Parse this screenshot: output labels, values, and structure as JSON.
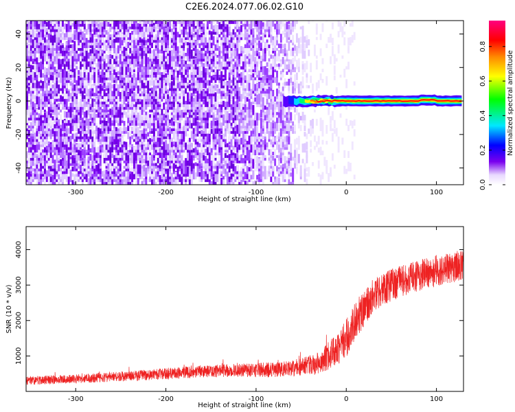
{
  "title": "C2E6.2024.077.06.02.G10",
  "colors": {
    "snr_line": "#ee2222",
    "spectrogram_noise": "#7a00ee",
    "spectrogram_signal_core": "#ee1111"
  },
  "chart_data": [
    {
      "type": "heatmap",
      "title": "C2E6.2024.077.06.02.G10",
      "xlabel": "Height of straight line (km)",
      "ylabel": "Frequency (Hz)",
      "xlim": [
        -355,
        130
      ],
      "ylim": [
        -50,
        48
      ],
      "x_ticks": [
        -300,
        -200,
        -100,
        0,
        100
      ],
      "y_ticks": [
        -40,
        -20,
        0,
        20,
        40
      ],
      "colorbar": {
        "label": "Normalized spectral amplitude",
        "range": [
          0.0,
          0.95
        ],
        "ticks": [
          0.0,
          0.2,
          0.4,
          0.6,
          0.8
        ],
        "colormap": [
          "#e8d8ff",
          "#7a00ee",
          "#0000ff",
          "#00e8ff",
          "#00ff00",
          "#ffff00",
          "#ff8800",
          "#ff0000",
          "#ff0080"
        ]
      },
      "features": [
        {
          "description": "scattered low-amplitude noise",
          "x_range": [
            -355,
            -20
          ],
          "y_range": [
            -50,
            48
          ],
          "amplitude": 0.15
        },
        {
          "description": "narrow reflection signal near 0 Hz",
          "x_range": [
            -70,
            130
          ],
          "y_center": 0,
          "amplitude": 0.9
        }
      ]
    },
    {
      "type": "line",
      "xlabel": "Height of straight line (km)",
      "ylabel": "SNR (10 * v/v)",
      "xlim": [
        -355,
        130
      ],
      "ylim": [
        0,
        4650
      ],
      "x_ticks": [
        -300,
        -200,
        -100,
        0,
        100
      ],
      "y_ticks": [
        1000,
        2000,
        3000,
        4000
      ],
      "envelope": {
        "x": [
          -355,
          -300,
          -250,
          -200,
          -150,
          -100,
          -60,
          -30,
          -10,
          0,
          10,
          30,
          50,
          70,
          90,
          110,
          130
        ],
        "y_mean": [
          300,
          350,
          420,
          500,
          580,
          600,
          640,
          800,
          1200,
          1500,
          2000,
          2700,
          3000,
          3200,
          3350,
          3450,
          3550
        ],
        "y_spread": [
          120,
          130,
          140,
          160,
          180,
          200,
          230,
          320,
          450,
          550,
          550,
          500,
          450,
          450,
          450,
          450,
          450
        ]
      }
    }
  ]
}
